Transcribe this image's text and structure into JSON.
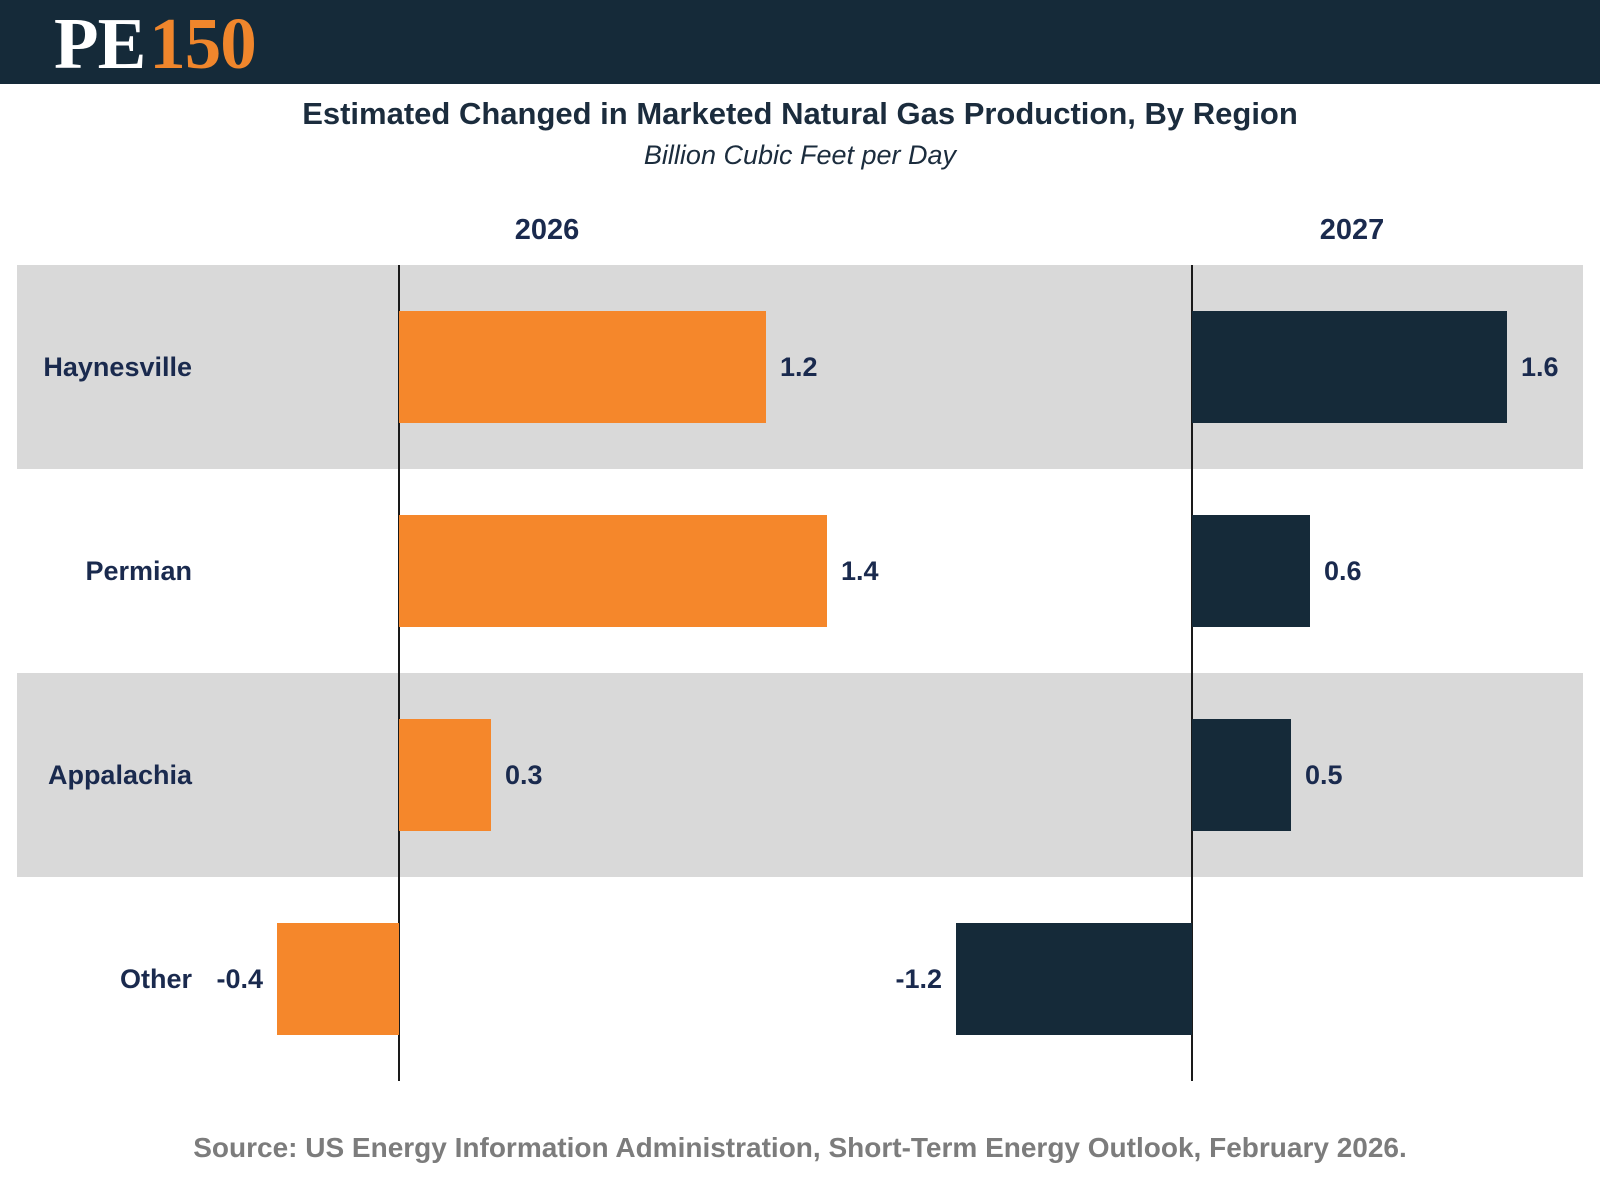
{
  "header": {
    "logo_pe": "PE",
    "logo_150": "150"
  },
  "title": "Estimated Changed in Marketed Natural Gas Production, By Region",
  "subtitle": "Billion Cubic Feet per Day",
  "source": "Source: US Energy Information Administration, Short-Term Energy Outlook, February 2026.",
  "colors": {
    "header_navy": "#152A39",
    "bar_navy": "#152A39",
    "bar_orange": "#F5872B",
    "logo_orange": "#F0862C",
    "band_gray": "#D9D9D9",
    "label_navy": "#1A2A4E",
    "title_navy": "#1B2C3D",
    "source_gray": "#7C7C7C",
    "axis_black": "#1a1a1a"
  },
  "chart_data": {
    "type": "bar",
    "orientation": "horizontal",
    "title": "Estimated Changed in Marketed Natural Gas Production, By Region",
    "subtitle": "Billion Cubic Feet per Day",
    "categories": [
      "Haynesville",
      "Permian",
      "Appalachia",
      "Other"
    ],
    "series": [
      {
        "name": "2026",
        "color": "#F5872B",
        "values": [
          1.2,
          1.4,
          0.3,
          -0.4
        ],
        "labels": [
          "1.2",
          "1.4",
          "0.3",
          "-0.4"
        ]
      },
      {
        "name": "2027",
        "color": "#152A39",
        "values": [
          1.6,
          0.6,
          0.5,
          -1.2
        ],
        "labels": [
          "1.6",
          "0.6",
          "0.5",
          "-1.2"
        ]
      }
    ],
    "layout": {
      "panels": "side-by-side, one zero baseline per year panel",
      "row_stripes": [
        "#D9D9D9",
        "#FFFFFF"
      ],
      "value_labels": "outside bar end, negatives labeled left of bar",
      "legend": "none",
      "gridlines": "off"
    }
  }
}
